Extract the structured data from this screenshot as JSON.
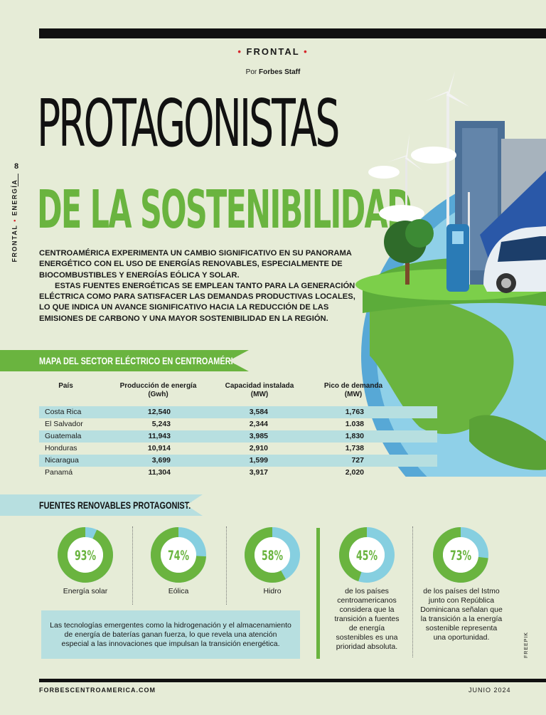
{
  "header": {
    "section": "FRONTAL",
    "byline_prefix": "Por",
    "byline_author": "Forbes Staff"
  },
  "sidebar": {
    "page_number": "8",
    "section_a": "FRONTAL",
    "section_b": "ENERGÍA"
  },
  "title": {
    "line1": "PROTAGONISTAS",
    "line2": "DE LA SOSTENIBILIDAD"
  },
  "intro": {
    "p1": "Centroamérica experimenta un cambio significativo en su panorama energético con el uso de energías renovables, especialmente de biocombustibles y energías eólica y solar.",
    "p2": "Estas fuentes energéticas se emplean tanto para la generación eléctrica como para satisfacer las demandas productivas locales, lo que indica un avance significativo hacia la reducción de las emisiones de carbono y una mayor sostenibilidad en la región."
  },
  "map_section": {
    "heading": "MAPA DEL SECTOR ELÉCTRICO EN CENTROAMÉRICA",
    "columns": [
      "País",
      "Producción de energía (Gwh)",
      "Capacidad instalada (MW)",
      "Pico de demanda (MW)"
    ],
    "rows": [
      {
        "country": "Costa Rica",
        "production": "12,540",
        "capacity": "3,584",
        "peak": "1,763"
      },
      {
        "country": "El Salvador",
        "production": "5,243",
        "capacity": "2,344",
        "peak": "1.038"
      },
      {
        "country": "Guatemala",
        "production": "11,943",
        "capacity": "3,985",
        "peak": "1,830"
      },
      {
        "country": "Honduras",
        "production": "10,914",
        "capacity": "2,910",
        "peak": "1,738"
      },
      {
        "country": "Nicaragua",
        "production": "3,699",
        "capacity": "1,599",
        "peak": "727"
      },
      {
        "country": "Panamá",
        "production": "11,304",
        "capacity": "3,917",
        "peak": "2,020"
      }
    ]
  },
  "renewables": {
    "heading": "FUENTES RENOVABLES PROTAGONISTAS",
    "donuts": [
      {
        "percent": 93,
        "label": "93%",
        "caption": "Energía solar"
      },
      {
        "percent": 74,
        "label": "74%",
        "caption": "Eólica"
      },
      {
        "percent": 58,
        "label": "58%",
        "caption": "Hidro"
      },
      {
        "percent": 45,
        "label": "45%",
        "caption": "de los países centroamericanos considera que la transición a fuentes de energía sostenibles es una prioridad absoluta."
      },
      {
        "percent": 73,
        "label": "73%",
        "caption": "de los países del Istmo junto con República Dominicana señalan que la transición a la energía sostenible representa una oportunidad."
      }
    ],
    "note": "Las tecnologías emergentes como la hidrogenación y el almacenamiento de energía de baterías ganan fuerza, lo que revela una atención especial a las innovaciones que impulsan la transición energética.",
    "colors": {
      "green": "#6ab43f",
      "blue": "#86cfe0"
    }
  },
  "footer": {
    "site": "FORBESCENTROAMERICA.COM",
    "date": "JUNIO 2024",
    "credit": "FREEPIK"
  }
}
